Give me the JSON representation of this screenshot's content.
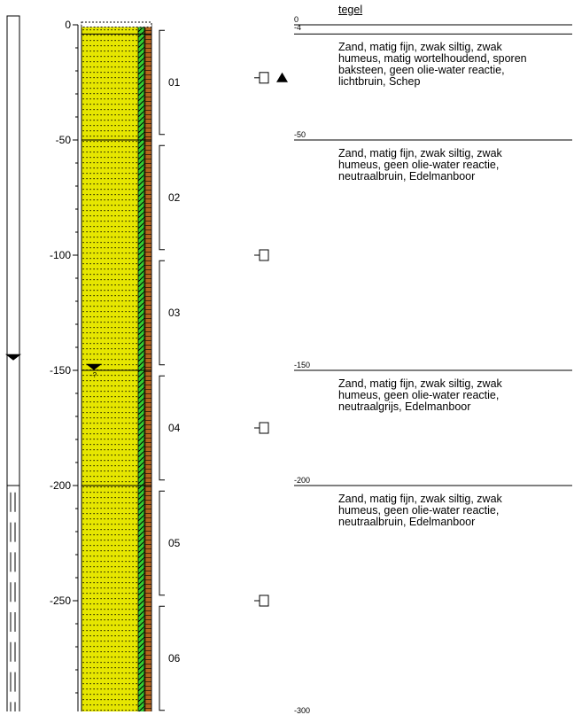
{
  "axis": {
    "ticks": [
      {
        "value": 0,
        "label": "0"
      },
      {
        "value": -50,
        "label": "-50"
      },
      {
        "value": -100,
        "label": "-100"
      },
      {
        "value": -150,
        "label": "-150"
      },
      {
        "value": -200,
        "label": "-200"
      },
      {
        "value": -250,
        "label": "-250"
      },
      {
        "value": -300,
        "label": "-300"
      }
    ],
    "min": -300,
    "max": 0
  },
  "water_level": {
    "depth": -148,
    "symbol": "water-level-triangle",
    "sublabel": "-?"
  },
  "outer_water_level": {
    "depth": -143
  },
  "casing": {
    "solid_to": -200,
    "filter_from": -200,
    "filter_to": -300
  },
  "samples": [
    {
      "label": "01",
      "top": -2,
      "bottom": -48
    },
    {
      "label": "02",
      "top": -52,
      "bottom": -98
    },
    {
      "label": "03",
      "top": -102,
      "bottom": -148
    },
    {
      "label": "04",
      "top": -152,
      "bottom": -198
    },
    {
      "label": "05",
      "top": -202,
      "bottom": -248
    },
    {
      "label": "06",
      "top": -252,
      "bottom": -298
    }
  ],
  "markers": [
    {
      "depth": -23,
      "icon": "sample-jar-icon",
      "extra": "triangle-marker"
    },
    {
      "depth": -100,
      "icon": "sample-jar-icon"
    },
    {
      "depth": -175,
      "icon": "sample-jar-icon"
    },
    {
      "depth": -250,
      "icon": "sample-jar-icon"
    }
  ],
  "layers": [
    {
      "top": 0,
      "top_label": "0",
      "bottom_label": "-4",
      "lines": [
        "tegel"
      ],
      "underline": true
    },
    {
      "top": -4,
      "top_label": "",
      "lines": [
        "Zand, matig fijn, zwak siltig, zwak",
        "humeus, matig wortelhoudend, sporen",
        "baksteen, geen olie-water reactie,",
        "lichtbruin, Schep"
      ]
    },
    {
      "top": -50,
      "top_label": "-50",
      "lines": [
        "Zand, matig fijn, zwak siltig, zwak",
        "humeus, geen olie-water reactie,",
        "neutraalbruin, Edelmanboor"
      ]
    },
    {
      "top": -150,
      "top_label": "-150",
      "lines": [
        "Zand, matig fijn, zwak siltig, zwak",
        "humeus, geen olie-water reactie,",
        "neutraalgrijs, Edelmanboor"
      ]
    },
    {
      "top": -200,
      "top_label": "-200",
      "lines": [
        "Zand, matig fijn, zwak siltig, zwak",
        "humeus, geen olie-water reactie,",
        "neutraalbruin, Edelmanboor"
      ]
    },
    {
      "top": -300,
      "top_label": "-300",
      "lines": []
    }
  ],
  "colors": {
    "sand": "#e6e600",
    "humus": "#33cc33",
    "brick": "#b5651d",
    "line": "#000000"
  }
}
